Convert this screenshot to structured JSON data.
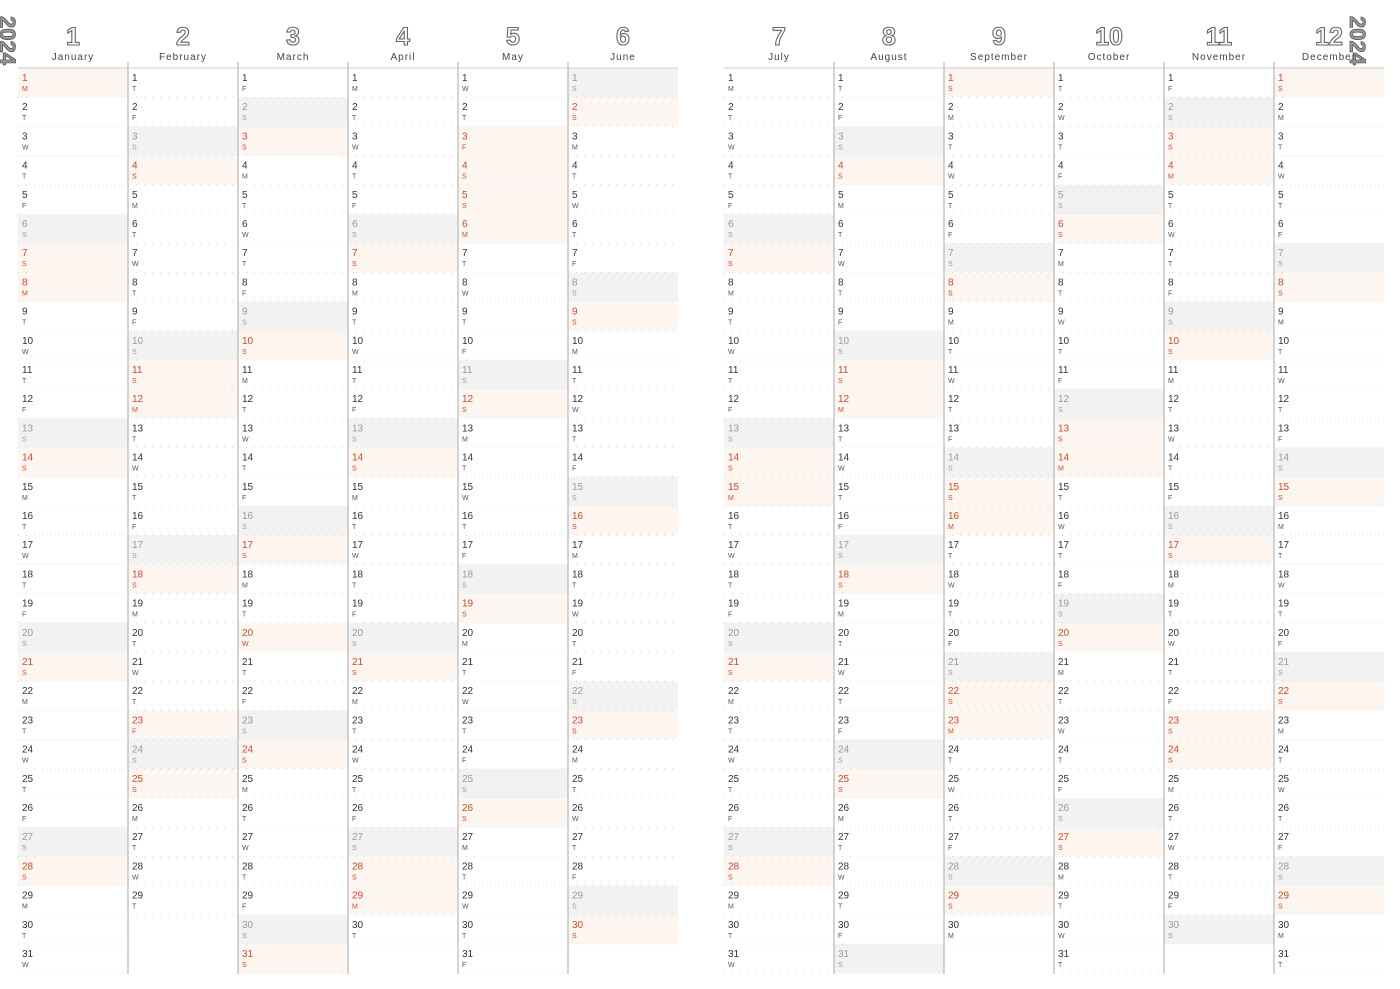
{
  "year": "2024",
  "months": [
    {
      "number": 1,
      "name": "January",
      "days": [
        1,
        2,
        3,
        4,
        5,
        6,
        7,
        8,
        9,
        10,
        11,
        12,
        13,
        14,
        15,
        16,
        17,
        18,
        19,
        20,
        21,
        22,
        23,
        24,
        25,
        26,
        27,
        28,
        29,
        30,
        31
      ],
      "weekdays": [
        "M",
        "T",
        "W",
        "T",
        "F",
        "S",
        "S",
        "M",
        "T",
        "W",
        "T",
        "F",
        "S",
        "S",
        "M",
        "T",
        "W",
        "T",
        "F",
        "S",
        "S",
        "M",
        "T",
        "W",
        "T",
        "F",
        "S",
        "S",
        "M",
        "T",
        "W"
      ],
      "red": [
        1,
        7,
        8,
        14,
        21,
        28
      ],
      "gray": [
        6,
        13,
        20,
        27
      ]
    },
    {
      "number": 2,
      "name": "February",
      "days": [
        1,
        2,
        3,
        4,
        5,
        6,
        7,
        8,
        9,
        10,
        11,
        12,
        13,
        14,
        15,
        16,
        17,
        18,
        19,
        20,
        21,
        22,
        23,
        24,
        25,
        26,
        27,
        28,
        29
      ],
      "weekdays": [
        "T",
        "F",
        "S",
        "S",
        "M",
        "T",
        "W",
        "T",
        "F",
        "S",
        "S",
        "M",
        "T",
        "W",
        "T",
        "F",
        "S",
        "S",
        "M",
        "T",
        "W",
        "T",
        "F",
        "S",
        "S",
        "M",
        "T",
        "W",
        "T"
      ],
      "red": [
        4,
        11,
        12,
        18,
        23,
        25
      ],
      "gray": [
        3,
        10,
        17,
        24
      ]
    },
    {
      "number": 3,
      "name": "March",
      "days": [
        1,
        2,
        3,
        4,
        5,
        6,
        7,
        8,
        9,
        10,
        11,
        12,
        13,
        14,
        15,
        16,
        17,
        18,
        19,
        20,
        21,
        22,
        23,
        24,
        25,
        26,
        27,
        28,
        29,
        30,
        31
      ],
      "weekdays": [
        "F",
        "S",
        "S",
        "M",
        "T",
        "W",
        "T",
        "F",
        "S",
        "S",
        "M",
        "T",
        "W",
        "T",
        "F",
        "S",
        "S",
        "M",
        "T",
        "W",
        "T",
        "F",
        "S",
        "S",
        "M",
        "T",
        "W",
        "T",
        "F",
        "S",
        "S"
      ],
      "red": [
        3,
        10,
        17,
        20,
        24,
        31
      ],
      "gray": [
        2,
        9,
        16,
        23,
        30
      ]
    },
    {
      "number": 4,
      "name": "April",
      "days": [
        1,
        2,
        3,
        4,
        5,
        6,
        7,
        8,
        9,
        10,
        11,
        12,
        13,
        14,
        15,
        16,
        17,
        18,
        19,
        20,
        21,
        22,
        23,
        24,
        25,
        26,
        27,
        28,
        29,
        30
      ],
      "weekdays": [
        "M",
        "T",
        "W",
        "T",
        "F",
        "S",
        "S",
        "M",
        "T",
        "W",
        "T",
        "F",
        "S",
        "S",
        "M",
        "T",
        "W",
        "T",
        "F",
        "S",
        "S",
        "M",
        "T",
        "W",
        "T",
        "F",
        "S",
        "S",
        "M",
        "T"
      ],
      "red": [
        7,
        14,
        21,
        28,
        29
      ],
      "gray": [
        6,
        13,
        20,
        27
      ]
    },
    {
      "number": 5,
      "name": "May",
      "days": [
        1,
        2,
        3,
        4,
        5,
        6,
        7,
        8,
        9,
        10,
        11,
        12,
        13,
        14,
        15,
        16,
        17,
        18,
        19,
        20,
        21,
        22,
        23,
        24,
        25,
        26,
        27,
        28,
        29,
        30,
        31
      ],
      "weekdays": [
        "W",
        "T",
        "F",
        "S",
        "S",
        "M",
        "T",
        "W",
        "T",
        "F",
        "S",
        "S",
        "M",
        "T",
        "W",
        "T",
        "F",
        "S",
        "S",
        "M",
        "T",
        "W",
        "T",
        "F",
        "S",
        "S",
        "M",
        "T",
        "W",
        "T",
        "F"
      ],
      "red": [
        3,
        4,
        5,
        6,
        12,
        19,
        26
      ],
      "gray": [
        11,
        18,
        25
      ]
    },
    {
      "number": 6,
      "name": "June",
      "days": [
        1,
        2,
        3,
        4,
        5,
        6,
        7,
        8,
        9,
        10,
        11,
        12,
        13,
        14,
        15,
        16,
        17,
        18,
        19,
        20,
        21,
        22,
        23,
        24,
        25,
        26,
        27,
        28,
        29,
        30
      ],
      "weekdays": [
        "S",
        "S",
        "M",
        "T",
        "W",
        "T",
        "F",
        "S",
        "S",
        "M",
        "T",
        "W",
        "T",
        "F",
        "S",
        "S",
        "M",
        "T",
        "W",
        "T",
        "F",
        "S",
        "S",
        "M",
        "T",
        "W",
        "T",
        "F",
        "S",
        "S"
      ],
      "red": [
        2,
        9,
        16,
        23,
        30
      ],
      "gray": [
        1,
        8,
        15,
        22,
        29
      ]
    },
    {
      "number": 7,
      "name": "July",
      "days": [
        1,
        2,
        3,
        4,
        5,
        6,
        7,
        8,
        9,
        10,
        11,
        12,
        13,
        14,
        15,
        16,
        17,
        18,
        19,
        20,
        21,
        22,
        23,
        24,
        25,
        26,
        27,
        28,
        29,
        30,
        31
      ],
      "weekdays": [
        "M",
        "T",
        "W",
        "T",
        "F",
        "S",
        "S",
        "M",
        "T",
        "W",
        "T",
        "F",
        "S",
        "S",
        "M",
        "T",
        "W",
        "T",
        "F",
        "S",
        "S",
        "M",
        "T",
        "W",
        "T",
        "F",
        "S",
        "S",
        "M",
        "T",
        "W"
      ],
      "red": [
        7,
        14,
        15,
        21,
        28
      ],
      "gray": [
        6,
        13,
        20,
        27
      ]
    },
    {
      "number": 8,
      "name": "August",
      "days": [
        1,
        2,
        3,
        4,
        5,
        6,
        7,
        8,
        9,
        10,
        11,
        12,
        13,
        14,
        15,
        16,
        17,
        18,
        19,
        20,
        21,
        22,
        23,
        24,
        25,
        26,
        27,
        28,
        29,
        30,
        31
      ],
      "weekdays": [
        "T",
        "F",
        "S",
        "S",
        "M",
        "T",
        "W",
        "T",
        "F",
        "S",
        "S",
        "M",
        "T",
        "W",
        "T",
        "F",
        "S",
        "S",
        "M",
        "T",
        "W",
        "T",
        "F",
        "S",
        "S",
        "M",
        "T",
        "W",
        "T",
        "F",
        "S"
      ],
      "red": [
        4,
        11,
        12,
        18,
        25
      ],
      "gray": [
        3,
        10,
        17,
        24,
        31
      ]
    },
    {
      "number": 9,
      "name": "September",
      "days": [
        1,
        2,
        3,
        4,
        5,
        6,
        7,
        8,
        9,
        10,
        11,
        12,
        13,
        14,
        15,
        16,
        17,
        18,
        19,
        20,
        21,
        22,
        23,
        24,
        25,
        26,
        27,
        28,
        29,
        30
      ],
      "weekdays": [
        "S",
        "M",
        "T",
        "W",
        "T",
        "F",
        "S",
        "S",
        "M",
        "T",
        "W",
        "T",
        "F",
        "S",
        "S",
        "M",
        "T",
        "W",
        "T",
        "F",
        "S",
        "S",
        "M",
        "T",
        "W",
        "T",
        "F",
        "S",
        "S",
        "M"
      ],
      "red": [
        1,
        8,
        15,
        16,
        22,
        23,
        29
      ],
      "gray": [
        7,
        14,
        21,
        28
      ]
    },
    {
      "number": 10,
      "name": "October",
      "days": [
        1,
        2,
        3,
        4,
        5,
        6,
        7,
        8,
        9,
        10,
        11,
        12,
        13,
        14,
        15,
        16,
        17,
        18,
        19,
        20,
        21,
        22,
        23,
        24,
        25,
        26,
        27,
        28,
        29,
        30,
        31
      ],
      "weekdays": [
        "T",
        "W",
        "T",
        "F",
        "S",
        "S",
        "M",
        "T",
        "W",
        "T",
        "F",
        "S",
        "S",
        "M",
        "T",
        "W",
        "T",
        "F",
        "S",
        "S",
        "M",
        "T",
        "W",
        "T",
        "F",
        "S",
        "S",
        "M",
        "T",
        "W",
        "T"
      ],
      "red": [
        6,
        13,
        14,
        20,
        27
      ],
      "gray": [
        5,
        12,
        19,
        26
      ]
    },
    {
      "number": 11,
      "name": "November",
      "days": [
        1,
        2,
        3,
        4,
        5,
        6,
        7,
        8,
        9,
        10,
        11,
        12,
        13,
        14,
        15,
        16,
        17,
        18,
        19,
        20,
        21,
        22,
        23,
        24,
        25,
        26,
        27,
        28,
        29,
        30
      ],
      "weekdays": [
        "F",
        "S",
        "S",
        "M",
        "T",
        "W",
        "T",
        "F",
        "S",
        "S",
        "M",
        "T",
        "W",
        "T",
        "F",
        "S",
        "S",
        "M",
        "T",
        "W",
        "T",
        "F",
        "S",
        "S",
        "M",
        "T",
        "W",
        "T",
        "F",
        "S"
      ],
      "red": [
        3,
        4,
        10,
        17,
        23,
        24
      ],
      "gray": [
        2,
        9,
        16,
        30
      ]
    },
    {
      "number": 12,
      "name": "December",
      "days": [
        1,
        2,
        3,
        4,
        5,
        6,
        7,
        8,
        9,
        10,
        11,
        12,
        13,
        14,
        15,
        16,
        17,
        18,
        19,
        20,
        21,
        22,
        23,
        24,
        25,
        26,
        27,
        28,
        29,
        30,
        31
      ],
      "weekdays": [
        "S",
        "M",
        "T",
        "W",
        "T",
        "F",
        "S",
        "S",
        "M",
        "T",
        "W",
        "T",
        "F",
        "S",
        "S",
        "M",
        "T",
        "W",
        "T",
        "F",
        "S",
        "S",
        "M",
        "T",
        "W",
        "T",
        "F",
        "S",
        "S",
        "M",
        "T"
      ],
      "red": [
        1,
        8,
        15,
        22,
        29
      ],
      "gray": [
        7,
        14,
        21,
        28
      ]
    }
  ]
}
